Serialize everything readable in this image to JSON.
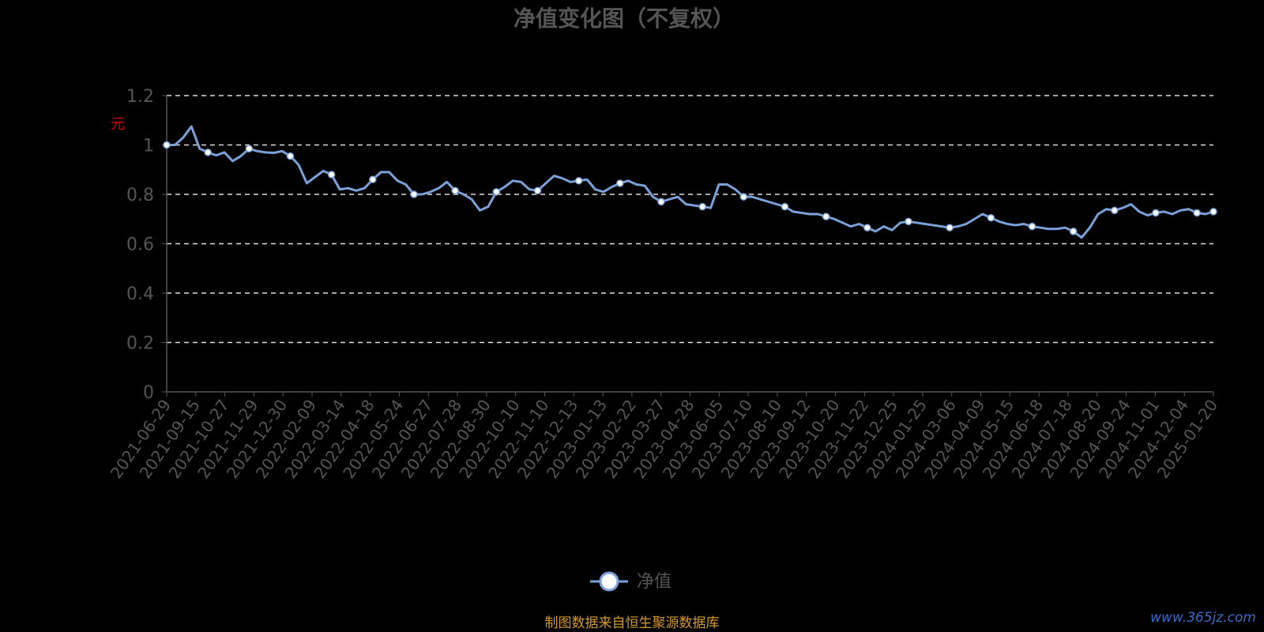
{
  "chart_data": {
    "type": "line",
    "title": "净值变化图（不复权）",
    "ylabel": "元",
    "ylim": [
      0,
      1.2
    ],
    "yticks": [
      "0",
      "0.2",
      "0.4",
      "0.6",
      "0.8",
      "1",
      "1.2"
    ],
    "grid": "y-dashed",
    "xticks": [
      "2021-06-29",
      "2021-09-15",
      "2021-10-27",
      "2021-11-29",
      "2021-12-30",
      "2022-02-09",
      "2022-03-14",
      "2022-04-18",
      "2022-05-24",
      "2022-06-27",
      "2022-07-28",
      "2022-08-30",
      "2022-10-10",
      "2022-11-10",
      "2022-12-13",
      "2023-01-13",
      "2023-02-22",
      "2023-03-27",
      "2023-04-28",
      "2023-06-05",
      "2023-07-10",
      "2023-08-10",
      "2023-09-12",
      "2023-10-20",
      "2023-11-22",
      "2023-12-25",
      "2024-01-25",
      "2024-03-06",
      "2024-04-09",
      "2024-05-15",
      "2024-06-18",
      "2024-07-18",
      "2024-08-20",
      "2024-09-24",
      "2024-11-01",
      "2024-12-04",
      "2025-01-20"
    ],
    "series": [
      {
        "name": "净值",
        "color": "#7aa2d8",
        "values": [
          1.0,
          1.0,
          1.03,
          1.075,
          0.985,
          0.97,
          0.958,
          0.97,
          0.935,
          0.955,
          0.985,
          0.975,
          0.97,
          0.968,
          0.975,
          0.955,
          0.92,
          0.845,
          0.87,
          0.895,
          0.88,
          0.82,
          0.825,
          0.815,
          0.825,
          0.86,
          0.89,
          0.89,
          0.855,
          0.84,
          0.8,
          0.8,
          0.81,
          0.825,
          0.85,
          0.815,
          0.8,
          0.78,
          0.735,
          0.75,
          0.81,
          0.83,
          0.855,
          0.85,
          0.82,
          0.815,
          0.845,
          0.875,
          0.865,
          0.85,
          0.855,
          0.86,
          0.82,
          0.81,
          0.83,
          0.845,
          0.855,
          0.84,
          0.835,
          0.79,
          0.77,
          0.78,
          0.79,
          0.76,
          0.755,
          0.75,
          0.745,
          0.84,
          0.84,
          0.82,
          0.79,
          0.79,
          0.78,
          0.77,
          0.76,
          0.75,
          0.73,
          0.725,
          0.72,
          0.72,
          0.71,
          0.7,
          0.685,
          0.67,
          0.68,
          0.665,
          0.65,
          0.67,
          0.655,
          0.685,
          0.69,
          0.685,
          0.68,
          0.675,
          0.67,
          0.665,
          0.67,
          0.68,
          0.7,
          0.72,
          0.705,
          0.69,
          0.68,
          0.675,
          0.68,
          0.67,
          0.665,
          0.66,
          0.66,
          0.665,
          0.65,
          0.625,
          0.665,
          0.72,
          0.74,
          0.735,
          0.745,
          0.76,
          0.73,
          0.715,
          0.725,
          0.73,
          0.72,
          0.735,
          0.74,
          0.725,
          0.72,
          0.73
        ]
      }
    ],
    "legend": {
      "position": "bottom",
      "label": "净值"
    }
  },
  "footer": {
    "source": "制图数据来自恒生聚源数据库",
    "watermark": "www.365jz.com"
  }
}
